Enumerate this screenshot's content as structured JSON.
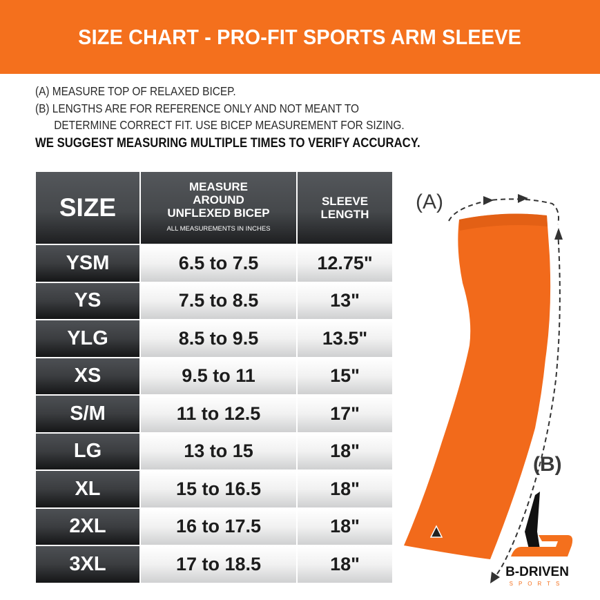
{
  "title": "SIZE CHART - PRO-FIT SPORTS ARM SLEEVE",
  "notes": {
    "a": "(A) MEASURE TOP OF RELAXED BICEP.",
    "b1": "(B) LENGTHS ARE FOR REFERENCE ONLY AND NOT MEANT TO",
    "b2": "DETERMINE CORRECT FIT. USE BICEP MEASUREMENT FOR SIZING.",
    "suggest": "WE SUGGEST MEASURING MULTIPLE TIMES TO VERIFY ACCURACY."
  },
  "table": {
    "headers": {
      "size": "SIZE",
      "measure": "MEASURE AROUND UNFLEXED BICEP",
      "measure_note": "ALL MEASUREMENTS IN INCHES",
      "length": "SLEEVE LENGTH"
    },
    "rows": [
      [
        "YSM",
        "6.5 to 7.5",
        "12.75\""
      ],
      [
        "YS",
        "7.5 to 8.5",
        "13\""
      ],
      [
        "YLG",
        "8.5 to 9.5",
        "13.5\""
      ],
      [
        "XS",
        "9.5 to 11",
        "15\""
      ],
      [
        "S/M",
        "11 to 12.5",
        "17\""
      ],
      [
        "LG",
        "13 to 15",
        "18\""
      ],
      [
        "XL",
        "15 to 16.5",
        "18\""
      ],
      [
        "2XL",
        "16 to 17.5",
        "18\""
      ],
      [
        "3XL",
        "17 to 18.5",
        "18\""
      ]
    ]
  },
  "diagram": {
    "label_a": "(A)",
    "label_b": "(B)",
    "sleeve_color": "#f26a1b"
  },
  "brand": {
    "name": "B-DRIVEN",
    "sub": "SPORTS"
  },
  "colors": {
    "accent": "#f4701d",
    "dark": "#3b3d40"
  }
}
